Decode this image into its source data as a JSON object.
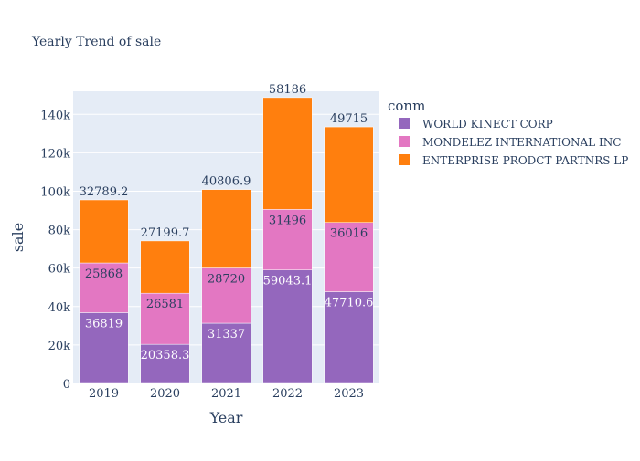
{
  "chart_data": {
    "type": "bar",
    "stacked": true,
    "title": "Yearly Trend of sale",
    "xlabel": "Year",
    "ylabel": "sale",
    "categories": [
      "2019",
      "2020",
      "2021",
      "2022",
      "2023"
    ],
    "ylim": [
      0,
      152000
    ],
    "yticks": [
      0,
      20000,
      40000,
      60000,
      80000,
      100000,
      120000,
      140000
    ],
    "ytick_labels": [
      "0",
      "20k",
      "40k",
      "60k",
      "80k",
      "100k",
      "120k",
      "140k"
    ],
    "grid": true,
    "legend": {
      "title": "conm",
      "placement": "right",
      "entries": [
        "WORLD KINECT CORP",
        "MONDELEZ INTERNATIONAL INC",
        "ENTERPRISE PRODCT PARTNRS LP"
      ]
    },
    "series": [
      {
        "name": "WORLD KINECT CORP",
        "color": "#9467bd",
        "values": [
          36819,
          20358.3,
          31337,
          59043.1,
          47710.6
        ],
        "labels": [
          "36819",
          "20358.3",
          "31337",
          "59043.1",
          "47710.6"
        ]
      },
      {
        "name": "MONDELEZ INTERNATIONAL INC",
        "color": "#e377c2",
        "values": [
          25868,
          26581,
          28720,
          31496,
          36016
        ],
        "labels": [
          "25868",
          "26581",
          "28720",
          "31496",
          "36016"
        ]
      },
      {
        "name": "ENTERPRISE PRODCT PARTNRS LP",
        "color": "#ff7f0e",
        "values": [
          32789.2,
          27199.7,
          40806.9,
          58186,
          49715
        ],
        "labels": [
          "32789.2",
          "27199.7",
          "40806.9",
          "58186",
          "49715"
        ]
      }
    ]
  }
}
